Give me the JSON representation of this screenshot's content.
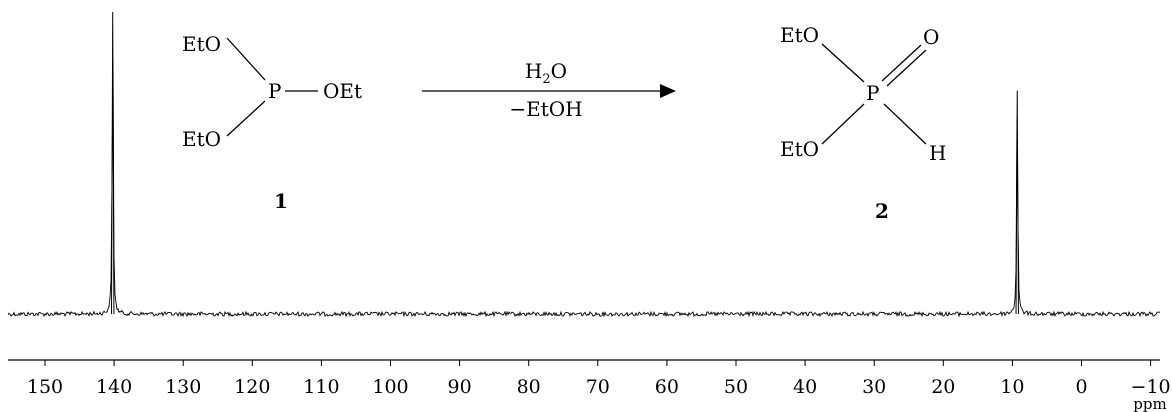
{
  "chart_data": {
    "type": "line",
    "title": "",
    "xlabel": "ppm",
    "ylabel": "",
    "xlim": [
      155,
      -11
    ],
    "x_reversed": true,
    "ylim": [
      0,
      1
    ],
    "grid": false,
    "legend": "none",
    "x_ticks": [
      150,
      140,
      130,
      120,
      110,
      100,
      90,
      80,
      70,
      60,
      50,
      40,
      30,
      20,
      10,
      0,
      -10
    ],
    "x_tick_labels": [
      "150",
      "140",
      "130",
      "120",
      "110",
      "100",
      "90",
      "80",
      "70",
      "60",
      "50",
      "40",
      "30",
      "20",
      "10",
      "0",
      "−10"
    ],
    "series": [
      {
        "peaks": [
          {
            "ppm": 140.2,
            "relative_height": 1.0
          },
          {
            "ppm": 9.3,
            "relative_height": 0.74
          }
        ]
      }
    ]
  },
  "scheme": {
    "compound1": {
      "label": "1",
      "phosphorus": "P",
      "groups": [
        "EtO",
        "OEt",
        "EtO"
      ]
    },
    "arrow": {
      "above": {
        "main": "H",
        "sub": "2",
        "tail": "O"
      },
      "below": "−EtOH"
    },
    "compound2": {
      "label": "2",
      "phosphorus": "P",
      "top_left": "EtO",
      "bottom_left": "EtO",
      "oxygen": "O",
      "hydrogen": "H"
    }
  }
}
